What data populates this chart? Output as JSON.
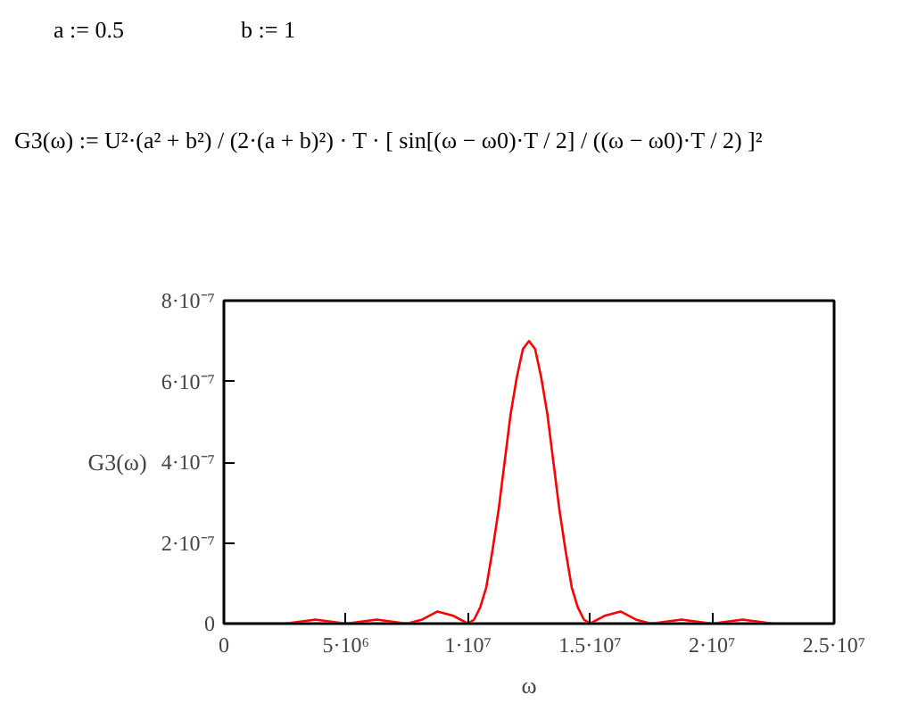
{
  "chart_data": {
    "type": "line",
    "ylabel": "G3(ω)",
    "xlabel": "ω",
    "annotations": [
      "a := 0.5",
      "b := 1",
      "G3(ω) := U²·(a² + b²) / (2·(a + b)²) · T · [ sin[(ω − ω0)·T / 2] / ((ω − ω0)·T / 2) ]²"
    ],
    "x": [
      0,
      1250000,
      2500000,
      3750000,
      5000000,
      6250000,
      7500000,
      8125000,
      8750000,
      9375000,
      10000000,
      10250000,
      10500000,
      10750000,
      11000000,
      11250000,
      11500000,
      11750000,
      12000000,
      12250000,
      12500000,
      12750000,
      13000000,
      13250000,
      13500000,
      13750000,
      14000000,
      14250000,
      14500000,
      14750000,
      15000000,
      15625000,
      16250000,
      16875000,
      17500000,
      18750000,
      20000000,
      21250000,
      22500000
    ],
    "series": [
      {
        "color": "#ff0000",
        "values": [
          0,
          0,
          0,
          1e-08,
          0,
          1e-08,
          0,
          1e-08,
          3e-08,
          2e-08,
          0,
          1e-08,
          4e-08,
          9e-08,
          1.8e-07,
          2.8e-07,
          4e-07,
          5.2e-07,
          6.1e-07,
          6.8e-07,
          7e-07,
          6.8e-07,
          6.1e-07,
          5.2e-07,
          4e-07,
          2.8e-07,
          1.8e-07,
          9e-08,
          4e-08,
          1e-08,
          0,
          2e-08,
          3e-08,
          1e-08,
          0,
          1e-08,
          0,
          1e-08,
          0
        ]
      }
    ],
    "xlim": [
      0,
      25000000
    ],
    "ylim": [
      0,
      8e-07
    ],
    "xticks": [
      0,
      {
        "value": 5000000,
        "label": "5·10⁶"
      },
      {
        "value": 10000000,
        "label": "1·10⁷"
      },
      {
        "value": 15000000,
        "label": "1.5·10⁷"
      },
      {
        "value": 20000000,
        "label": "2·10⁷"
      },
      {
        "value": 25000000,
        "label": "2.5·10⁷"
      }
    ],
    "yticks": [
      0,
      {
        "value": 2e-07,
        "label": "2·10⁻⁷"
      },
      {
        "value": 4e-07,
        "label": "4·10⁻⁷"
      },
      {
        "value": 6e-07,
        "label": "6·10⁻⁷"
      },
      {
        "value": 8e-07,
        "label": "8·10⁻⁷"
      }
    ],
    "grid": false,
    "line_style": "solid"
  }
}
